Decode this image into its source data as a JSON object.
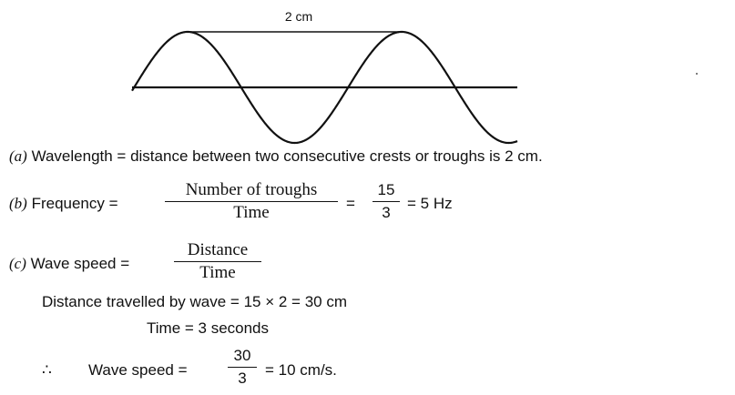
{
  "diagram": {
    "measure_label": "2 cm",
    "colors": {
      "ink": "#111111",
      "background": "#ffffff"
    }
  },
  "answers": {
    "a": {
      "label": "(a)",
      "text": "Wavelength = distance between two consecutive crests or troughs is 2 cm."
    },
    "b": {
      "label": "(b)",
      "prefix": "Frequency =",
      "frac1_num": "Number of troughs",
      "frac1_den": "Time",
      "eq1": "=",
      "frac2_num": "15",
      "frac2_den": "3",
      "result": "= 5 Hz"
    },
    "c": {
      "label": "(c)",
      "prefix": "Wave speed =",
      "frac_num": "Distance",
      "frac_den": "Time",
      "distance_line": "Distance travelled by wave = 15 × 2 = 30 cm",
      "time_line": "Time = 3 seconds",
      "therefore": "∴",
      "speed_prefix": "Wave speed =",
      "speed_num": "30",
      "speed_den": "3",
      "speed_result": "= 10 cm/s."
    }
  }
}
